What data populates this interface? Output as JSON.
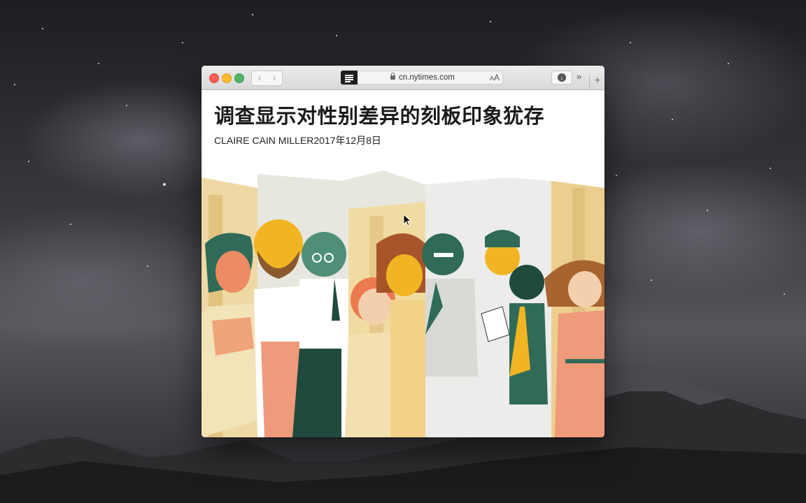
{
  "browser": {
    "url": "cn.nytimes.com",
    "text_size_small": "A",
    "text_size_large": "A",
    "more_label": "»",
    "new_tab_label": "+",
    "back_label": "‹",
    "forward_label": "›"
  },
  "article": {
    "headline": "调查显示对性别差异的刻板印象犹存",
    "byline": "CLAIRE CAIN MILLER2017年12月8日"
  },
  "icons": {
    "reader": "reader-view-icon",
    "lock": "lock-icon",
    "download": "download-icon"
  },
  "colors": {
    "illustration_green": "#2f6b58",
    "illustration_yellow": "#f1b523",
    "illustration_orange": "#ec7a4f",
    "illustration_cream": "#f3e3b8"
  }
}
